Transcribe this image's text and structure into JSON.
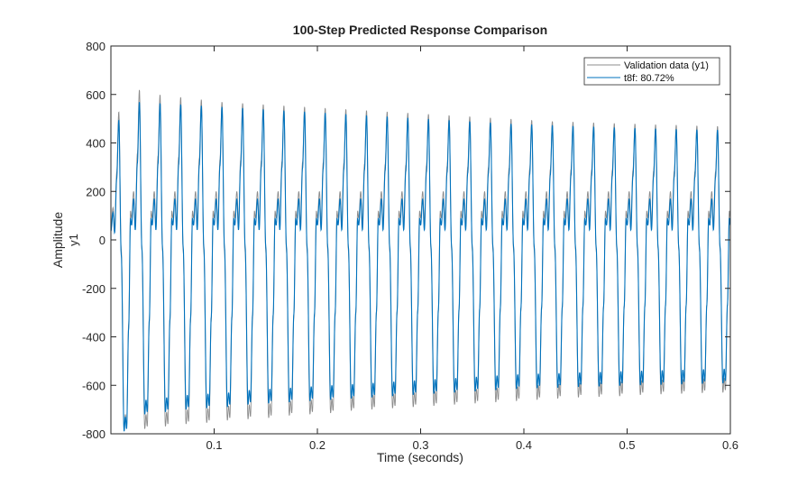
{
  "chart_data": {
    "type": "line",
    "title": "100-Step Predicted Response Comparison",
    "xlabel": "Time (seconds)",
    "ylabel": "Amplitude",
    "ylabel_sub": "y1",
    "xlim": [
      0,
      0.6
    ],
    "ylim": [
      -800,
      800
    ],
    "xticks": [
      0.1,
      0.2,
      0.3,
      0.4,
      0.5,
      0.6
    ],
    "xtick_labels": [
      "0.1",
      "0.2",
      "0.3",
      "0.4",
      "0.5",
      "0.6"
    ],
    "yticks": [
      -800,
      -600,
      -400,
      -200,
      0,
      200,
      400,
      600,
      800
    ],
    "ytick_labels": [
      "-800",
      "-600",
      "-400",
      "-200",
      "0",
      "200",
      "400",
      "600",
      "800"
    ],
    "legend_position": "top-right",
    "series": [
      {
        "name": "Validation data (y1)",
        "color": "#8c8c8c",
        "period": 0.02,
        "peaks_max": [
          620,
          620,
          600,
          590,
          580,
          570,
          565,
          560,
          555,
          550,
          545,
          540,
          535,
          530,
          525,
          520,
          515,
          510,
          505,
          500,
          495,
          490,
          488,
          485,
          482,
          480,
          477,
          475,
          472,
          470
        ],
        "troughs_min": [
          -780,
          -780,
          -770,
          -760,
          -755,
          -745,
          -740,
          -735,
          -725,
          -720,
          -715,
          -705,
          -700,
          -695,
          -690,
          -685,
          -680,
          -675,
          -670,
          -665,
          -660,
          -655,
          -650,
          -648,
          -645,
          -640,
          -637,
          -635,
          -632,
          -630
        ],
        "secondary_peak": 200,
        "shoulder": 90
      },
      {
        "name": "t8f: 80.72%",
        "color": "#0072bd",
        "period": 0.02,
        "peaks_max": [
          580,
          570,
          565,
          560,
          555,
          550,
          545,
          540,
          535,
          530,
          525,
          520,
          515,
          510,
          505,
          500,
          495,
          490,
          485,
          480,
          477,
          474,
          471,
          468,
          465,
          462,
          460,
          458,
          456,
          455
        ],
        "troughs_min": [
          -790,
          -720,
          -710,
          -700,
          -695,
          -690,
          -680,
          -675,
          -670,
          -665,
          -660,
          -655,
          -650,
          -645,
          -640,
          -635,
          -630,
          -625,
          -620,
          -615,
          -612,
          -610,
          -607,
          -605,
          -602,
          -600,
          -598,
          -596,
          -594,
          -592
        ],
        "secondary_peak": 170,
        "shoulder": 60
      }
    ]
  }
}
